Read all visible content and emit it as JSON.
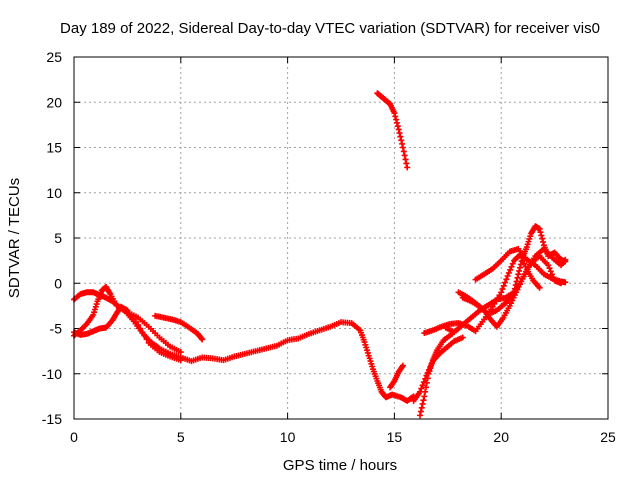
{
  "chart_data": {
    "type": "scatter",
    "title": "Day 189 of 2022, Sidereal Day-to-day VTEC variation (SDTVAR) for receiver vis0",
    "xlabel": "GPS time / hours",
    "ylabel": "SDTVAR / TECUs",
    "xlim": [
      0,
      25
    ],
    "ylim": [
      -15,
      25
    ],
    "xticks": [
      "0",
      "5",
      "10",
      "15",
      "20",
      "25"
    ],
    "yticks": [
      "-15",
      "-10",
      "-5",
      "0",
      "5",
      "10",
      "15",
      "20",
      "25"
    ],
    "grid": true,
    "marker": "plus",
    "marker_color": "#ff0000",
    "series": [
      {
        "values": [
          [
            0.0,
            -5.8
          ],
          [
            0.3,
            -5.2
          ],
          [
            0.6,
            -4.5
          ],
          [
            0.9,
            -3.5
          ],
          [
            1.1,
            -2.0
          ],
          [
            1.3,
            -0.8
          ],
          [
            1.5,
            -0.4
          ],
          [
            1.7,
            -1.2
          ],
          [
            2.0,
            -2.5
          ],
          [
            2.5,
            -3.2
          ],
          [
            3.0,
            -3.8
          ],
          [
            3.5,
            -4.8
          ],
          [
            4.0,
            -6.0
          ],
          [
            4.5,
            -7.0
          ],
          [
            5.0,
            -7.6
          ]
        ]
      },
      {
        "values": [
          [
            0.0,
            -1.8
          ],
          [
            0.3,
            -1.2
          ],
          [
            0.6,
            -1.0
          ],
          [
            0.9,
            -1.0
          ],
          [
            1.2,
            -1.3
          ],
          [
            1.5,
            -1.6
          ],
          [
            1.8,
            -2.0
          ],
          [
            2.1,
            -2.6
          ],
          [
            2.4,
            -3.1
          ],
          [
            2.8,
            -4.2
          ],
          [
            3.2,
            -5.5
          ],
          [
            3.6,
            -6.5
          ],
          [
            4.0,
            -7.2
          ],
          [
            4.5,
            -7.8
          ],
          [
            5.0,
            -8.2
          ],
          [
            5.5,
            -8.6
          ],
          [
            6.0,
            -8.2
          ],
          [
            6.5,
            -8.3
          ],
          [
            7.0,
            -8.5
          ],
          [
            7.5,
            -8.1
          ],
          [
            8.0,
            -7.8
          ],
          [
            8.5,
            -7.5
          ],
          [
            9.0,
            -7.2
          ],
          [
            9.5,
            -6.9
          ],
          [
            10.0,
            -6.3
          ],
          [
            10.5,
            -6.1
          ],
          [
            11.0,
            -5.6
          ],
          [
            11.5,
            -5.2
          ],
          [
            12.0,
            -4.8
          ],
          [
            12.5,
            -4.3
          ],
          [
            13.0,
            -4.4
          ],
          [
            13.4,
            -5.2
          ],
          [
            13.6,
            -6.5
          ],
          [
            13.8,
            -8.0
          ],
          [
            14.0,
            -9.5
          ],
          [
            14.2,
            -10.8
          ],
          [
            14.4,
            -12.0
          ],
          [
            14.6,
            -12.6
          ],
          [
            14.9,
            -12.3
          ],
          [
            15.3,
            -12.6
          ],
          [
            15.6,
            -13.0
          ],
          [
            15.9,
            -12.5
          ]
        ]
      },
      {
        "values": [
          [
            0.0,
            -5.4
          ],
          [
            0.3,
            -5.7
          ],
          [
            0.6,
            -5.6
          ],
          [
            0.9,
            -5.3
          ],
          [
            1.2,
            -5.0
          ],
          [
            1.5,
            -4.9
          ],
          [
            1.8,
            -4.1
          ],
          [
            2.0,
            -3.3
          ],
          [
            2.2,
            -2.6
          ],
          [
            2.5,
            -3.0
          ],
          [
            3.0,
            -4.6
          ],
          [
            3.5,
            -6.6
          ],
          [
            4.0,
            -7.6
          ],
          [
            4.5,
            -8.1
          ],
          [
            5.0,
            -8.5
          ]
        ]
      },
      {
        "values": [
          [
            3.8,
            -3.6
          ],
          [
            4.2,
            -3.8
          ],
          [
            4.6,
            -4.0
          ],
          [
            5.0,
            -4.3
          ],
          [
            5.4,
            -4.9
          ],
          [
            5.8,
            -5.6
          ],
          [
            6.0,
            -6.2
          ]
        ]
      },
      {
        "values": [
          [
            14.2,
            21.0
          ],
          [
            14.4,
            20.6
          ],
          [
            14.6,
            20.2
          ],
          [
            14.8,
            19.8
          ],
          [
            15.0,
            18.8
          ],
          [
            15.2,
            17.0
          ],
          [
            15.4,
            15.0
          ],
          [
            15.6,
            12.8
          ]
        ]
      },
      {
        "values": [
          [
            14.8,
            -11.5
          ],
          [
            15.0,
            -10.8
          ],
          [
            15.2,
            -9.8
          ],
          [
            15.4,
            -9.1
          ]
        ]
      },
      {
        "values": [
          [
            16.2,
            -14.6
          ],
          [
            16.4,
            -12.5
          ],
          [
            16.6,
            -10.0
          ],
          [
            16.8,
            -8.5
          ],
          [
            17.0,
            -7.4
          ],
          [
            17.3,
            -6.3
          ],
          [
            17.7,
            -5.6
          ]
        ]
      },
      {
        "values": [
          [
            16.4,
            -5.5
          ],
          [
            16.8,
            -5.2
          ],
          [
            17.2,
            -4.8
          ],
          [
            17.6,
            -4.5
          ],
          [
            18.0,
            -4.4
          ],
          [
            18.4,
            -4.7
          ],
          [
            18.8,
            -5.3
          ],
          [
            19.2,
            -4.0
          ],
          [
            19.6,
            -2.6
          ],
          [
            20.0,
            -1.0
          ],
          [
            20.3,
            0.8
          ],
          [
            20.6,
            2.5
          ],
          [
            20.9,
            3.2
          ],
          [
            21.2,
            1.5
          ],
          [
            21.5,
            0.3
          ],
          [
            21.8,
            -0.5
          ]
        ]
      },
      {
        "values": [
          [
            17.4,
            -4.9
          ],
          [
            17.8,
            -5.4
          ],
          [
            18.2,
            -4.6
          ],
          [
            18.6,
            -3.8
          ],
          [
            19.0,
            -3.0
          ],
          [
            19.4,
            -2.4
          ],
          [
            19.8,
            -1.8
          ],
          [
            20.2,
            -1.6
          ],
          [
            20.6,
            -1.0
          ],
          [
            20.8,
            1.0
          ],
          [
            21.0,
            2.8
          ],
          [
            21.2,
            4.0
          ],
          [
            21.4,
            5.5
          ],
          [
            21.6,
            6.3
          ],
          [
            21.8,
            6.0
          ],
          [
            22.0,
            4.2
          ],
          [
            22.2,
            3.0
          ],
          [
            22.5,
            3.4
          ],
          [
            22.8,
            2.6
          ],
          [
            23.0,
            2.4
          ]
        ]
      },
      {
        "values": [
          [
            18.8,
            0.4
          ],
          [
            19.2,
            1.0
          ],
          [
            19.6,
            1.6
          ],
          [
            20.0,
            2.5
          ],
          [
            20.4,
            3.5
          ],
          [
            20.8,
            3.8
          ],
          [
            21.2,
            2.6
          ],
          [
            21.6,
            2.0
          ],
          [
            22.0,
            1.0
          ],
          [
            22.4,
            0.5
          ],
          [
            22.8,
            0.2
          ],
          [
            23.0,
            0.1
          ]
        ]
      },
      {
        "values": [
          [
            18.2,
            -1.6
          ],
          [
            18.6,
            -2.0
          ],
          [
            19.0,
            -2.6
          ],
          [
            19.4,
            -3.4
          ],
          [
            19.8,
            -3.0
          ],
          [
            20.2,
            -2.2
          ],
          [
            20.5,
            -1.4
          ],
          [
            20.8,
            -0.3
          ],
          [
            21.1,
            1.0
          ],
          [
            21.4,
            2.3
          ],
          [
            21.8,
            3.0
          ],
          [
            22.2,
            2.0
          ],
          [
            22.5,
            0.3
          ],
          [
            22.8,
            0.0
          ]
        ]
      },
      {
        "values": [
          [
            18.0,
            -1.0
          ],
          [
            18.4,
            -1.5
          ],
          [
            18.8,
            -2.2
          ],
          [
            19.2,
            -3.0
          ],
          [
            19.5,
            -4.0
          ],
          [
            19.8,
            -4.8
          ],
          [
            20.1,
            -3.8
          ],
          [
            20.4,
            -2.5
          ],
          [
            20.7,
            -1.0
          ],
          [
            21.0,
            0.5
          ],
          [
            21.3,
            1.8
          ],
          [
            21.6,
            3.0
          ],
          [
            22.0,
            3.8
          ],
          [
            22.4,
            2.8
          ],
          [
            22.8,
            2.0
          ],
          [
            23.0,
            2.6
          ]
        ]
      },
      {
        "values": [
          [
            15.9,
            -13.0
          ],
          [
            16.2,
            -12.0
          ],
          [
            16.5,
            -10.2
          ],
          [
            16.8,
            -8.6
          ],
          [
            17.1,
            -7.8
          ],
          [
            17.4,
            -7.2
          ],
          [
            17.8,
            -6.4
          ],
          [
            18.2,
            -6.0
          ]
        ]
      }
    ]
  }
}
